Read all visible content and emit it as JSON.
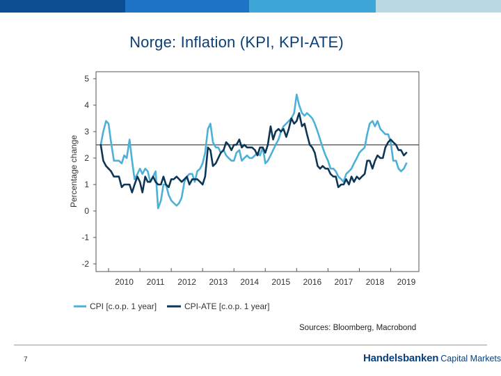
{
  "page": {
    "title": "Norge: Inflation (KPI, KPI-ATE)",
    "sources": "Sources: Bloomberg, Macrobond",
    "page_number": "7",
    "brand_main": "Handelsbanken",
    "brand_sub": "Capital Markets"
  },
  "colors": {
    "header_bar": [
      "#0b4f92",
      "#1d74c6",
      "#3ea7d8",
      "#b8d8e4"
    ],
    "cpi": "#4cb0d8",
    "cpi_ate": "#0d3556",
    "reference_line": "#444444",
    "title": "#0b3f78"
  },
  "chart_data": {
    "type": "line",
    "title": "",
    "xlabel": "",
    "ylabel": "Percentage change",
    "ylim": [
      -2,
      5
    ],
    "yticks": [
      5,
      4,
      3,
      2,
      1,
      0,
      -1,
      -2
    ],
    "xlim": [
      2009.6,
      2019.9
    ],
    "xticks": [
      "2010",
      "2011",
      "2012",
      "2013",
      "2014",
      "2015",
      "2016",
      "2017",
      "2018",
      "2019"
    ],
    "reference_line": 2.5,
    "legend_position": "bottom",
    "series": [
      {
        "name": "CPI [c.o.p. 1 year]",
        "color": "#4cb0d8",
        "x": [
          2009.75,
          2009.83,
          2009.92,
          2010.0,
          2010.08,
          2010.17,
          2010.25,
          2010.33,
          2010.42,
          2010.5,
          2010.58,
          2010.67,
          2010.75,
          2010.83,
          2010.92,
          2011.0,
          2011.08,
          2011.17,
          2011.25,
          2011.33,
          2011.42,
          2011.5,
          2011.58,
          2011.67,
          2011.75,
          2011.83,
          2011.92,
          2012.0,
          2012.08,
          2012.17,
          2012.25,
          2012.33,
          2012.42,
          2012.5,
          2012.58,
          2012.67,
          2012.75,
          2012.83,
          2012.92,
          2013.0,
          2013.08,
          2013.17,
          2013.25,
          2013.33,
          2013.42,
          2013.5,
          2013.58,
          2013.67,
          2013.75,
          2013.83,
          2013.92,
          2014.0,
          2014.08,
          2014.17,
          2014.25,
          2014.33,
          2014.42,
          2014.5,
          2014.58,
          2014.67,
          2014.75,
          2014.83,
          2014.92,
          2015.0,
          2015.08,
          2015.17,
          2015.25,
          2015.33,
          2015.42,
          2015.5,
          2015.58,
          2015.67,
          2015.75,
          2015.83,
          2015.92,
          2016.0,
          2016.08,
          2016.17,
          2016.25,
          2016.33,
          2016.42,
          2016.5,
          2016.58,
          2016.67,
          2016.75,
          2016.83,
          2016.92,
          2017.0,
          2017.08,
          2017.17,
          2017.25,
          2017.33,
          2017.42,
          2017.5,
          2017.58,
          2017.67,
          2017.75,
          2017.83,
          2017.92,
          2018.0,
          2018.08,
          2018.17,
          2018.25,
          2018.33,
          2018.42,
          2018.5,
          2018.58,
          2018.67,
          2018.75,
          2018.83,
          2018.92,
          2019.0,
          2019.08,
          2019.17,
          2019.25,
          2019.33,
          2019.42,
          2019.5
        ],
        "y": [
          2.5,
          3.0,
          3.4,
          3.3,
          2.6,
          1.9,
          1.9,
          1.9,
          1.8,
          2.1,
          2.0,
          2.7,
          1.9,
          1.2,
          1.4,
          1.6,
          1.4,
          1.6,
          1.5,
          1.1,
          1.3,
          1.5,
          0.1,
          0.4,
          1.0,
          1.0,
          0.6,
          0.4,
          0.3,
          0.2,
          0.3,
          0.5,
          1.1,
          1.3,
          1.4,
          1.4,
          1.1,
          1.5,
          1.6,
          1.8,
          2.2,
          3.1,
          3.3,
          2.6,
          2.4,
          2.4,
          2.2,
          2.3,
          2.1,
          2.0,
          1.9,
          1.9,
          2.2,
          2.3,
          1.9,
          2.0,
          2.1,
          2.0,
          2.0,
          2.1,
          2.2,
          2.1,
          2.4,
          1.8,
          1.9,
          2.1,
          2.3,
          2.5,
          2.7,
          3.0,
          3.2,
          3.3,
          3.4,
          3.5,
          3.7,
          4.4,
          4.0,
          3.7,
          3.6,
          3.7,
          3.6,
          3.5,
          3.3,
          3.0,
          2.7,
          2.4,
          2.1,
          1.9,
          1.6,
          1.6,
          1.5,
          1.3,
          1.2,
          1.1,
          1.4,
          1.5,
          1.6,
          1.8,
          2.0,
          2.2,
          2.3,
          2.4,
          2.9,
          3.3,
          3.4,
          3.2,
          3.4,
          3.1,
          3.0,
          2.9,
          2.9,
          2.6,
          1.9,
          1.9,
          1.6,
          1.5,
          1.6,
          1.8
        ]
      },
      {
        "name": "CPI-ATE [c.o.p. 1 year]",
        "color": "#0d3556",
        "x": [
          2009.75,
          2009.83,
          2009.92,
          2010.0,
          2010.08,
          2010.17,
          2010.25,
          2010.33,
          2010.42,
          2010.5,
          2010.58,
          2010.67,
          2010.75,
          2010.83,
          2010.92,
          2011.0,
          2011.08,
          2011.17,
          2011.25,
          2011.33,
          2011.42,
          2011.5,
          2011.58,
          2011.67,
          2011.75,
          2011.83,
          2011.92,
          2012.0,
          2012.08,
          2012.17,
          2012.25,
          2012.33,
          2012.42,
          2012.5,
          2012.58,
          2012.67,
          2012.75,
          2012.83,
          2012.92,
          2013.0,
          2013.08,
          2013.17,
          2013.25,
          2013.33,
          2013.42,
          2013.5,
          2013.58,
          2013.67,
          2013.75,
          2013.83,
          2013.92,
          2014.0,
          2014.08,
          2014.17,
          2014.25,
          2014.33,
          2014.42,
          2014.5,
          2014.58,
          2014.67,
          2014.75,
          2014.83,
          2014.92,
          2015.0,
          2015.08,
          2015.17,
          2015.25,
          2015.33,
          2015.42,
          2015.5,
          2015.58,
          2015.67,
          2015.75,
          2015.83,
          2015.92,
          2016.0,
          2016.08,
          2016.17,
          2016.25,
          2016.33,
          2016.42,
          2016.5,
          2016.58,
          2016.67,
          2016.75,
          2016.83,
          2016.92,
          2017.0,
          2017.08,
          2017.17,
          2017.25,
          2017.33,
          2017.42,
          2017.5,
          2017.58,
          2017.67,
          2017.75,
          2017.83,
          2017.92,
          2018.0,
          2018.08,
          2018.17,
          2018.25,
          2018.33,
          2018.42,
          2018.5,
          2018.58,
          2018.67,
          2018.75,
          2018.83,
          2018.92,
          2019.0,
          2019.08,
          2019.17,
          2019.25,
          2019.33,
          2019.42,
          2019.5
        ],
        "y": [
          2.5,
          1.9,
          1.7,
          1.6,
          1.5,
          1.3,
          1.3,
          1.3,
          0.9,
          1.0,
          1.0,
          1.0,
          0.7,
          1.0,
          1.3,
          1.1,
          0.7,
          1.3,
          1.1,
          1.1,
          1.3,
          1.1,
          1.0,
          1.0,
          1.3,
          1.0,
          0.9,
          1.2,
          1.2,
          1.3,
          1.2,
          1.1,
          1.2,
          1.3,
          1.0,
          1.2,
          1.2,
          1.2,
          1.1,
          1.0,
          1.3,
          2.4,
          2.3,
          1.7,
          1.8,
          2.0,
          2.2,
          2.3,
          2.6,
          2.5,
          2.3,
          2.5,
          2.5,
          2.7,
          2.4,
          2.5,
          2.4,
          2.4,
          2.4,
          2.3,
          2.1,
          2.4,
          2.4,
          2.2,
          2.5,
          3.2,
          2.7,
          3.0,
          3.1,
          3.0,
          3.1,
          2.8,
          3.1,
          3.5,
          3.3,
          3.4,
          3.7,
          3.2,
          3.3,
          2.9,
          2.5,
          2.4,
          2.2,
          1.7,
          1.6,
          1.7,
          1.6,
          1.6,
          1.4,
          1.3,
          1.3,
          0.9,
          1.0,
          1.0,
          1.2,
          1.0,
          1.3,
          1.1,
          1.3,
          1.2,
          1.3,
          1.4,
          1.9,
          1.9,
          1.6,
          1.9,
          2.1,
          2.0,
          2.0,
          2.4,
          2.6,
          2.7,
          2.6,
          2.5,
          2.3,
          2.3,
          2.1,
          2.2
        ]
      }
    ]
  }
}
